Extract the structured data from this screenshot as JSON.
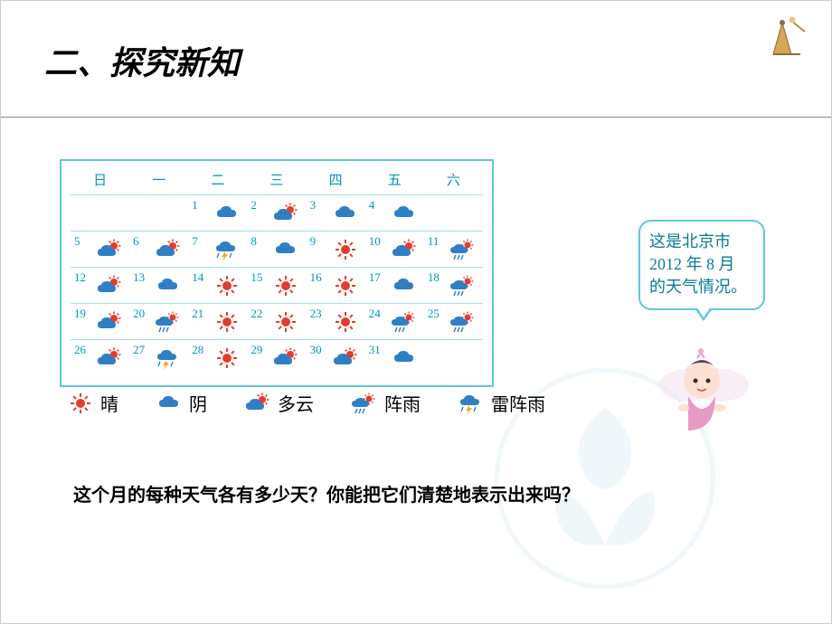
{
  "title": "二、探究新知",
  "calendar": {
    "border_color": "#5fc8d8",
    "text_color": "#0098b8",
    "headers": [
      "日",
      "一",
      "二",
      "三",
      "四",
      "五",
      "六"
    ],
    "rows": [
      [
        null,
        null,
        {
          "n": "1",
          "w": "cloudy"
        },
        {
          "n": "2",
          "w": "partly"
        },
        {
          "n": "3",
          "w": "cloudy"
        },
        {
          "n": "4",
          "w": "cloudy"
        },
        null
      ],
      [
        {
          "n": "5",
          "w": "partly"
        },
        {
          "n": "6",
          "w": "partly"
        },
        {
          "n": "7",
          "w": "thunder"
        },
        {
          "n": "8",
          "w": "cloudy"
        },
        {
          "n": "9",
          "w": "sunny"
        },
        {
          "n": "10",
          "w": "partly"
        },
        {
          "n": "11",
          "w": "shower"
        }
      ],
      [
        {
          "n": "12",
          "w": "partly"
        },
        {
          "n": "13",
          "w": "cloudy"
        },
        {
          "n": "14",
          "w": "sunny"
        },
        {
          "n": "15",
          "w": "sunny"
        },
        {
          "n": "16",
          "w": "sunny"
        },
        {
          "n": "17",
          "w": "cloudy"
        },
        {
          "n": "18",
          "w": "shower"
        }
      ],
      [
        {
          "n": "19",
          "w": "partly"
        },
        {
          "n": "20",
          "w": "shower"
        },
        {
          "n": "21",
          "w": "sunny"
        },
        {
          "n": "22",
          "w": "sunny"
        },
        {
          "n": "23",
          "w": "sunny"
        },
        {
          "n": "24",
          "w": "shower"
        },
        {
          "n": "25",
          "w": "shower"
        }
      ],
      [
        {
          "n": "26",
          "w": "partly"
        },
        {
          "n": "27",
          "w": "thunder"
        },
        {
          "n": "28",
          "w": "sunny"
        },
        {
          "n": "29",
          "w": "partly"
        },
        {
          "n": "30",
          "w": "partly"
        },
        {
          "n": "31",
          "w": "cloudy"
        },
        null
      ]
    ]
  },
  "weather_colors": {
    "sun": "#e63b2e",
    "cloud": "#2f7fc4",
    "rain": "#2f7fc4",
    "bolt": "#f5a623"
  },
  "legend": [
    {
      "icon": "sunny",
      "label": "晴"
    },
    {
      "icon": "cloudy",
      "label": "阴"
    },
    {
      "icon": "partly",
      "label": "多云"
    },
    {
      "icon": "shower",
      "label": "阵雨"
    },
    {
      "icon": "thunder",
      "label": "雷阵雨"
    }
  ],
  "question": "这个月的每种天气各有多少天？你能把它们清楚地表示出来吗？",
  "bubble": {
    "line1": "这是北京市",
    "line2": "2012 年 8 月",
    "line3": "的天气情况。"
  }
}
